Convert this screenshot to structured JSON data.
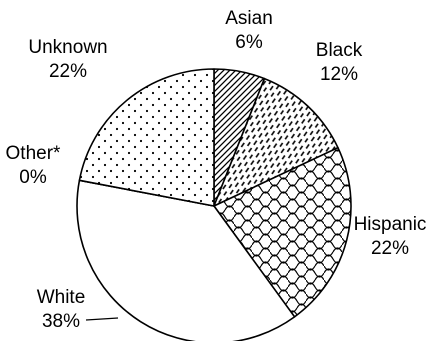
{
  "chart_data": {
    "type": "pie",
    "start_angle_deg": 0,
    "direction": "clockwise",
    "slices": [
      {
        "label": "Asian",
        "value": 6,
        "value_text": "6%",
        "pattern": "diagonal-hatch"
      },
      {
        "label": "Black",
        "value": 12,
        "value_text": "12%",
        "pattern": "dashes"
      },
      {
        "label": "Hispanic",
        "value": 22,
        "value_text": "22%",
        "pattern": "scales"
      },
      {
        "label": "White",
        "value": 38,
        "value_text": "38%",
        "pattern": "none"
      },
      {
        "label": "Other*",
        "value": 0,
        "value_text": "0%",
        "pattern": "none"
      },
      {
        "label": "Unknown",
        "value": 22,
        "value_text": "22%",
        "pattern": "dots"
      }
    ],
    "colors": {
      "stroke": "#000000",
      "fill": "#ffffff",
      "text": "#000000"
    }
  }
}
